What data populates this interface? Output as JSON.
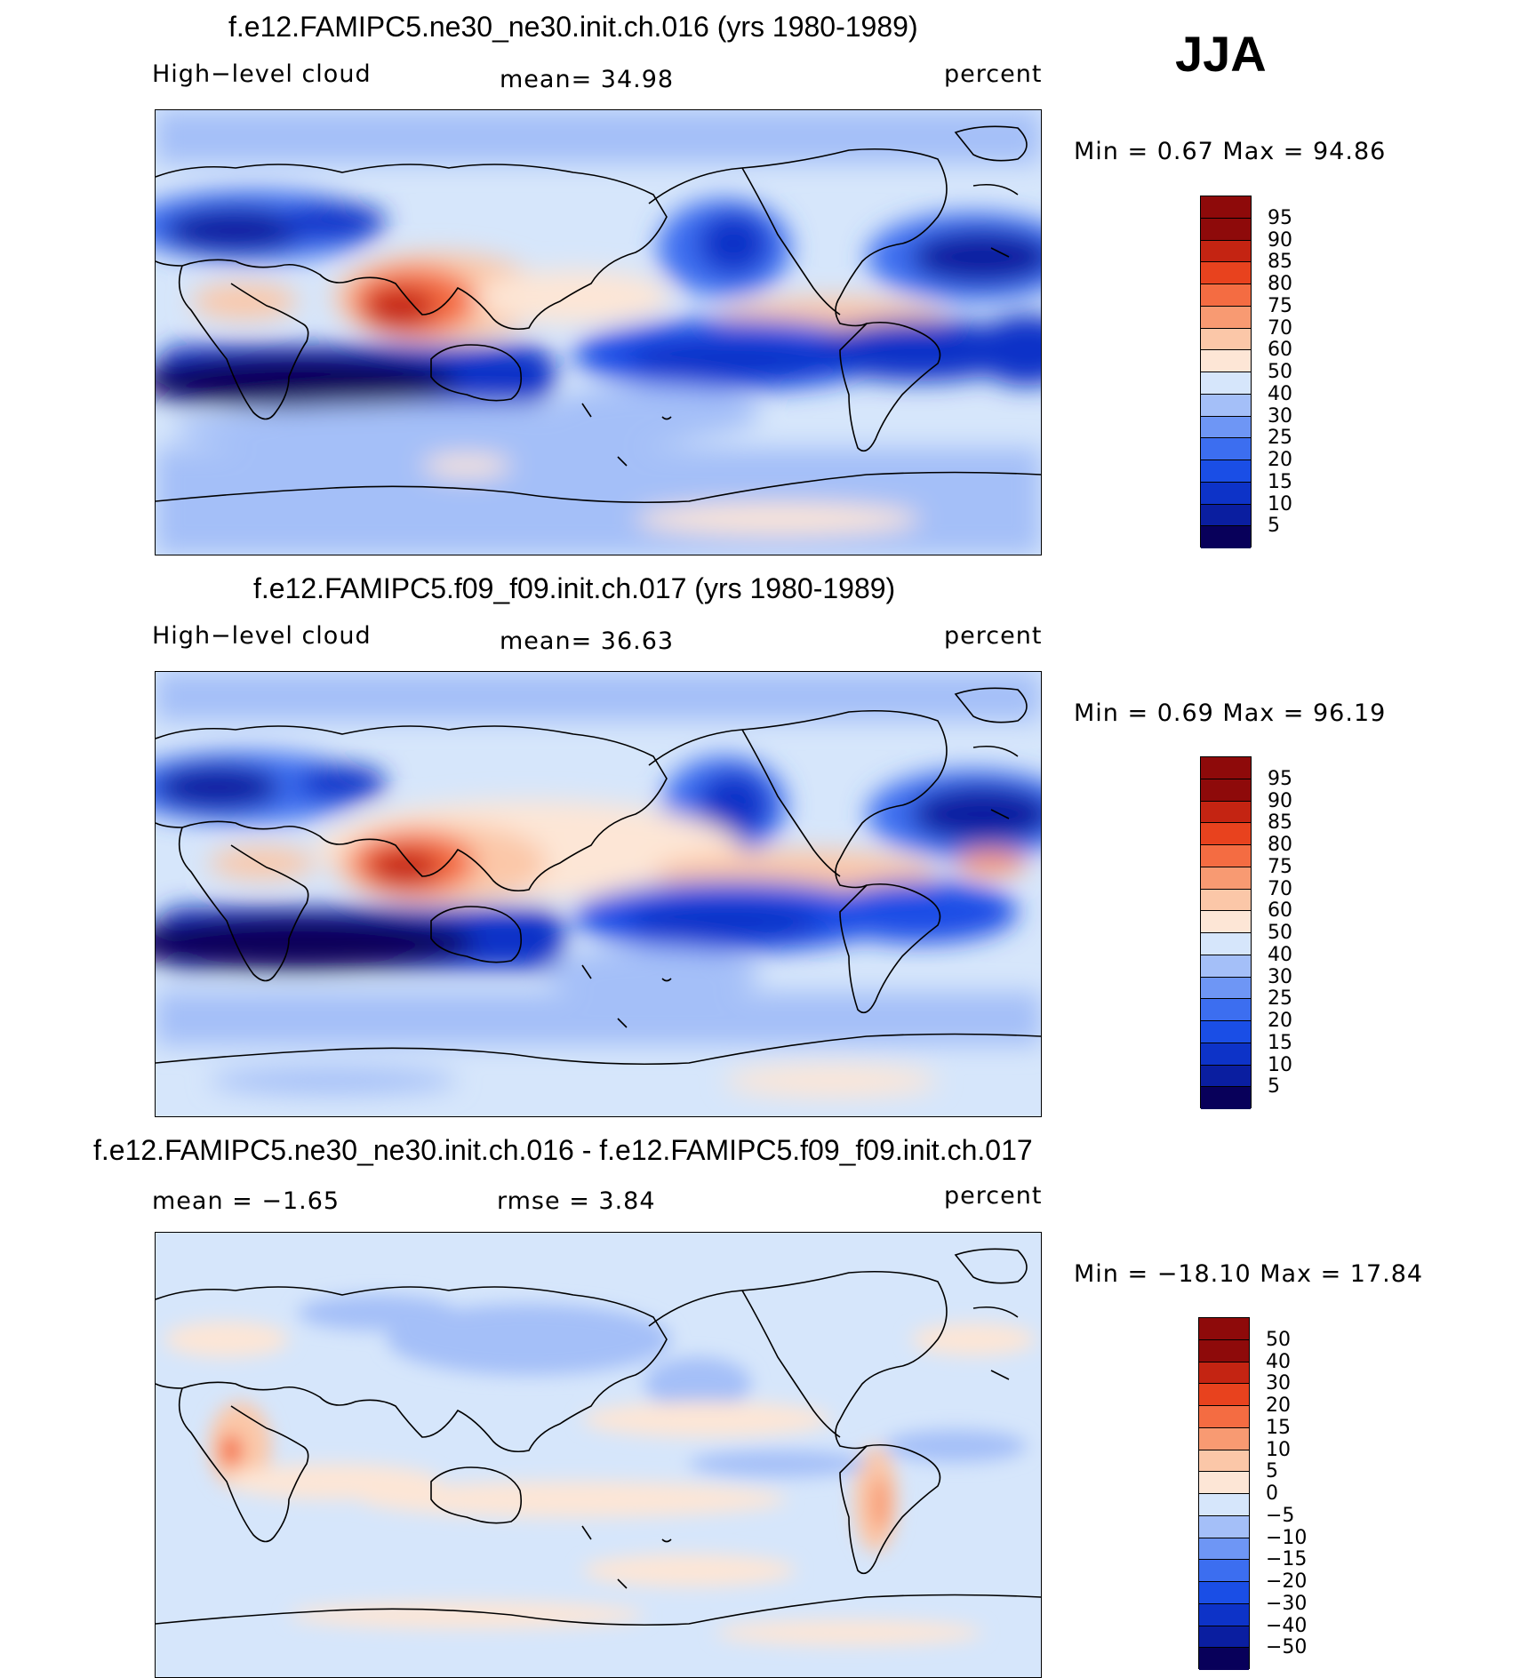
{
  "season": "JJA",
  "panels": [
    {
      "title": "f.e12.FAMIPC5.ne30_ne30.init.ch.016 (yrs 1980-1989)",
      "left": "High−level cloud",
      "mid": "mean=   34.98",
      "right": "percent",
      "minmax": "Min =    0.67 Max =   94.86",
      "ticks": [
        "95",
        "90",
        "85",
        "80",
        "75",
        "70",
        "60",
        "50",
        "40",
        "30",
        "25",
        "20",
        "15",
        "10",
        "5"
      ]
    },
    {
      "title": "f.e12.FAMIPC5.f09_f09.init.ch.017 (yrs 1980-1989)",
      "left": "High−level cloud",
      "mid": "mean=   36.63",
      "right": "percent",
      "minmax": "Min =    0.69 Max =   96.19",
      "ticks": [
        "95",
        "90",
        "85",
        "80",
        "75",
        "70",
        "60",
        "50",
        "40",
        "30",
        "25",
        "20",
        "15",
        "10",
        "5"
      ]
    },
    {
      "title": "f.e12.FAMIPC5.ne30_ne30.init.ch.016 - f.e12.FAMIPC5.f09_f09.init.ch.017",
      "left": "mean =   −1.65",
      "mid": "rmse =    3.84",
      "right": "percent",
      "minmax": "Min = −18.10 Max =   17.84",
      "ticks": [
        "50",
        "40",
        "30",
        "20",
        "15",
        "10",
        "5",
        "0",
        "−5",
        "−10",
        "−15",
        "−20",
        "−30",
        "−40",
        "−50"
      ]
    }
  ],
  "colors": [
    "#08005a",
    "#0a1ea0",
    "#0d33c8",
    "#1a4ee6",
    "#3c6ef0",
    "#6e96f5",
    "#a4bff8",
    "#d6e6fb",
    "#fde6d6",
    "#fbc7a8",
    "#f89a72",
    "#f46c42",
    "#e8421e",
    "#c42412",
    "#8e0a0a"
  ]
}
